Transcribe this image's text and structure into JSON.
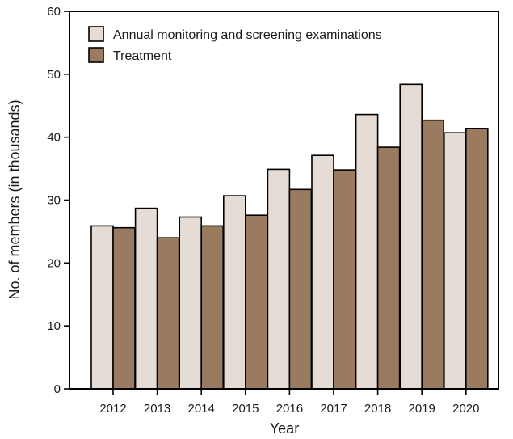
{
  "chart_data": {
    "type": "bar",
    "title": "",
    "xlabel": "Year",
    "ylabel": "No. of members (in thousands)",
    "categories": [
      "2012",
      "2013",
      "2014",
      "2015",
      "2016",
      "2017",
      "2018",
      "2019",
      "2020"
    ],
    "ylim": [
      0,
      60
    ],
    "yticks": [
      0,
      10,
      20,
      30,
      40,
      50,
      60
    ],
    "grid": false,
    "legend_position": "top-left",
    "series": [
      {
        "name": "Annual monitoring and screening examinations",
        "color": "#e6dcd6",
        "values": [
          25.9,
          28.7,
          27.3,
          30.7,
          34.9,
          37.1,
          43.6,
          48.4,
          40.7
        ]
      },
      {
        "name": "Treatment",
        "color": "#9a7b60",
        "values": [
          25.6,
          24.0,
          25.9,
          27.6,
          31.7,
          34.8,
          38.4,
          42.7,
          41.4
        ]
      }
    ]
  }
}
